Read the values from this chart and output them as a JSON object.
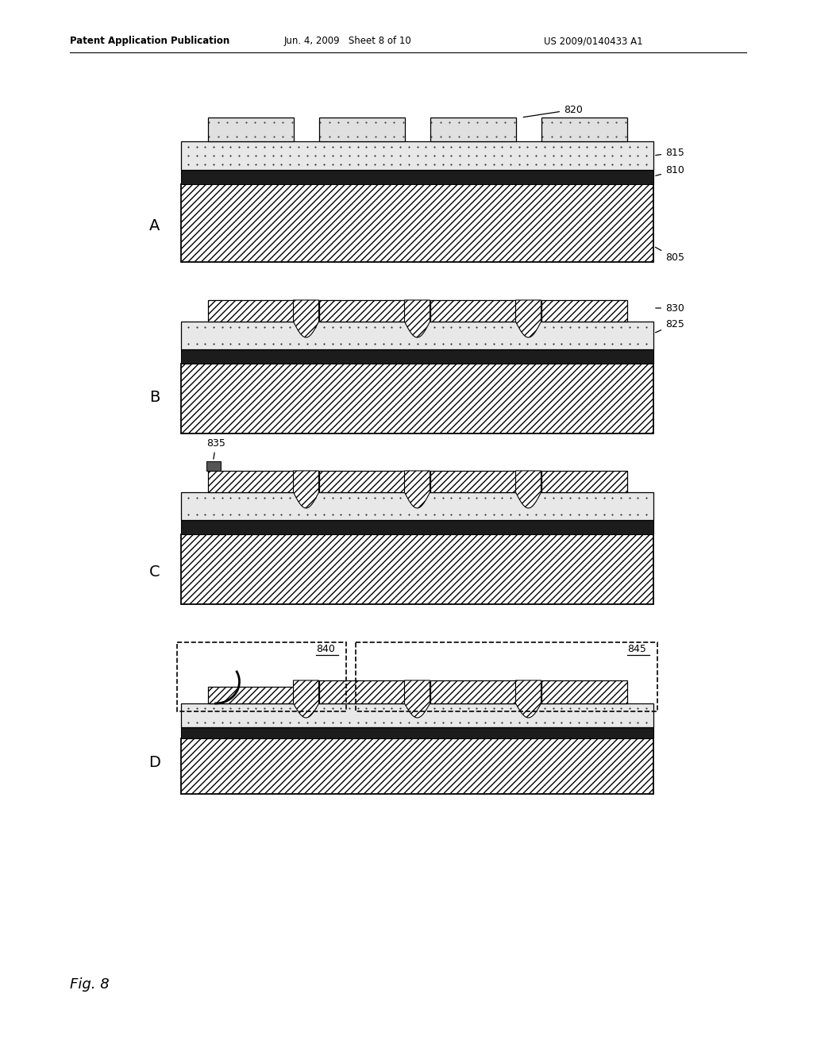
{
  "header_left": "Patent Application Publication",
  "header_mid": "Jun. 4, 2009   Sheet 8 of 10",
  "header_right": "US 2009/0140433 A1",
  "fig_label": "Fig. 8",
  "bg_color": "#ffffff",
  "panel_letters": [
    "A",
    "B",
    "C",
    "D"
  ],
  "labels_A": [
    "820",
    "815",
    "810",
    "805"
  ],
  "labels_B": [
    "830",
    "825"
  ],
  "labels_C": [
    "835"
  ],
  "labels_D": [
    "840",
    "845"
  ]
}
